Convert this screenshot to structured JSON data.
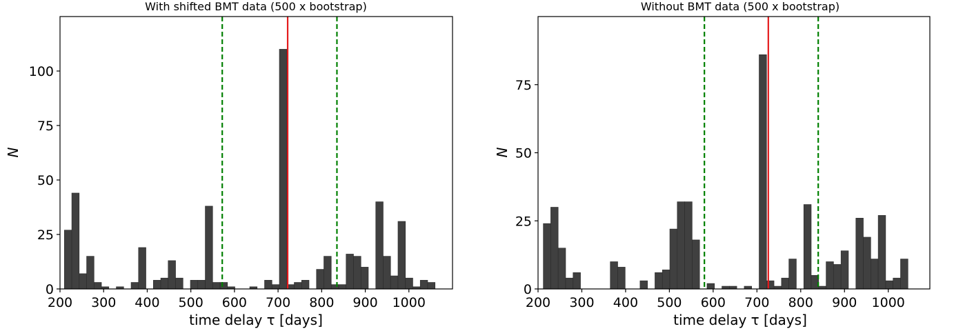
{
  "chart_data": [
    {
      "type": "bar",
      "title": "With shifted BMT data (500 x bootstrap)",
      "xlabel": "time delay  τ [days]",
      "ylabel": "N",
      "xlim": [
        200,
        1100
      ],
      "ylim": [
        0,
        125
      ],
      "xticks": [
        200,
        300,
        400,
        500,
        600,
        700,
        800,
        900,
        1000
      ],
      "yticks": [
        0,
        25,
        50,
        75,
        100
      ],
      "bin_width": 17,
      "bar_color": "#404040",
      "x": [
        210,
        227,
        244,
        261,
        278,
        295,
        312,
        329,
        346,
        363,
        380,
        397,
        414,
        431,
        448,
        465,
        482,
        499,
        516,
        533,
        550,
        567,
        584,
        601,
        618,
        635,
        652,
        669,
        686,
        703,
        720,
        737,
        754,
        771,
        788,
        805,
        822,
        839,
        856,
        873,
        890,
        907,
        924,
        941,
        958,
        975,
        992,
        1009,
        1026,
        1043,
        1060,
        1077
      ],
      "values": [
        27,
        44,
        7,
        15,
        3,
        1,
        0,
        1,
        0,
        3,
        19,
        0,
        4,
        5,
        13,
        5,
        0,
        4,
        4,
        38,
        3,
        3,
        1,
        0,
        0,
        1,
        0,
        4,
        2,
        110,
        2,
        3,
        4,
        0,
        9,
        15,
        2,
        2,
        16,
        15,
        10,
        0,
        40,
        15,
        6,
        31,
        5,
        1,
        4,
        3,
        0,
        0
      ],
      "vlines": [
        {
          "x": 722,
          "color": "#e41a1c",
          "style": "solid"
        },
        {
          "x": 572,
          "color": "#008000",
          "style": "dashed"
        },
        {
          "x": 835,
          "color": "#008000",
          "style": "dashed"
        }
      ]
    },
    {
      "type": "bar",
      "title": "Without BMT data (500 x bootstrap)",
      "xlabel": "time delay  τ [days]",
      "ylabel": "N",
      "xlim": [
        200,
        1095
      ],
      "ylim": [
        0,
        100
      ],
      "xticks": [
        200,
        300,
        400,
        500,
        600,
        700,
        800,
        900,
        1000
      ],
      "yticks": [
        0,
        25,
        50,
        75
      ],
      "bin_width": 17,
      "bar_color": "#404040",
      "x": [
        212,
        229,
        246,
        263,
        280,
        297,
        314,
        331,
        348,
        365,
        382,
        399,
        416,
        433,
        450,
        467,
        484,
        501,
        518,
        535,
        552,
        569,
        586,
        603,
        620,
        637,
        654,
        671,
        688,
        705,
        722,
        739,
        756,
        773,
        790,
        807,
        824,
        841,
        858,
        875,
        892,
        909,
        926,
        943,
        960,
        977,
        994,
        1011,
        1028,
        1045,
        1062
      ],
      "values": [
        24,
        30,
        15,
        4,
        6,
        0,
        0,
        0,
        0,
        10,
        8,
        0,
        0,
        3,
        0,
        6,
        7,
        22,
        32,
        32,
        18,
        0,
        2,
        0,
        1,
        1,
        0,
        1,
        0,
        86,
        3,
        1,
        4,
        11,
        0,
        31,
        5,
        1,
        10,
        9,
        14,
        0,
        26,
        19,
        11,
        27,
        3,
        4,
        11,
        0,
        0
      ],
      "vlines": [
        {
          "x": 726,
          "color": "#e41a1c",
          "style": "solid"
        },
        {
          "x": 580,
          "color": "#008000",
          "style": "dashed"
        },
        {
          "x": 840,
          "color": "#008000",
          "style": "dashed"
        }
      ]
    }
  ]
}
